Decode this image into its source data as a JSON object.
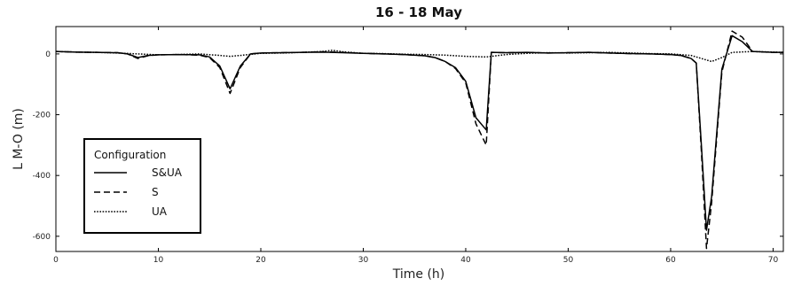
{
  "chart_data": {
    "type": "line",
    "title": "16 - 18 May",
    "xlabel": "Time (h)",
    "ylabel": "L M-O (m)",
    "xlim": [
      0,
      71
    ],
    "ylim": [
      -650,
      90
    ],
    "xticks": [
      0,
      10,
      20,
      30,
      40,
      50,
      60,
      70
    ],
    "yticks": [
      0,
      -200,
      -400,
      -600
    ],
    "grid": false,
    "legend": {
      "title": "Configuration",
      "placement": "lower-left",
      "entries": [
        "S&UA",
        "S",
        "UA"
      ]
    },
    "series": [
      {
        "name": "S&UA",
        "style": "solid",
        "x": [
          0,
          2,
          4,
          6,
          7,
          8,
          9,
          10,
          12,
          14,
          15,
          16,
          17,
          18,
          19,
          20,
          22,
          24,
          26,
          28,
          30,
          32,
          34,
          36,
          37,
          38,
          39,
          40,
          41,
          42,
          42.5,
          44,
          46,
          48,
          50,
          52,
          54,
          56,
          58,
          60,
          61,
          62,
          62.5,
          63,
          63.5,
          64,
          65,
          66,
          67,
          68,
          70,
          71
        ],
        "y": [
          8,
          6,
          5,
          4,
          0,
          -12,
          -5,
          -3,
          -2,
          -3,
          -10,
          -40,
          -115,
          -40,
          0,
          3,
          4,
          5,
          6,
          4,
          2,
          0,
          -2,
          -6,
          -12,
          -25,
          -45,
          -90,
          -210,
          -250,
          5,
          4,
          5,
          3,
          4,
          5,
          3,
          1,
          0,
          -2,
          -5,
          -15,
          -30,
          -300,
          -580,
          -470,
          -50,
          60,
          40,
          8,
          5,
          5
        ]
      },
      {
        "name": "S",
        "style": "dashed",
        "x": [
          0,
          2,
          4,
          6,
          7,
          8,
          9,
          10,
          12,
          14,
          15,
          16,
          17,
          18,
          19,
          20,
          22,
          24,
          26,
          28,
          30,
          32,
          34,
          36,
          37,
          38,
          39,
          40,
          41,
          42,
          42.5,
          44,
          46,
          48,
          50,
          52,
          54,
          56,
          58,
          60,
          61,
          62,
          62.5,
          63,
          63.5,
          64,
          65,
          66,
          67,
          68,
          70,
          71
        ],
        "y": [
          8,
          6,
          5,
          4,
          0,
          -15,
          -6,
          -3,
          -2,
          -4,
          -12,
          -45,
          -130,
          -45,
          0,
          3,
          4,
          5,
          7,
          5,
          2,
          0,
          -2,
          -6,
          -12,
          -25,
          -48,
          -95,
          -230,
          -300,
          5,
          4,
          5,
          3,
          4,
          5,
          3,
          1,
          0,
          -2,
          -5,
          -15,
          -30,
          -320,
          -640,
          -490,
          -60,
          75,
          55,
          8,
          5,
          5
        ]
      },
      {
        "name": "UA",
        "style": "dotted",
        "x": [
          0,
          2,
          4,
          6,
          8,
          10,
          12,
          14,
          16,
          17,
          18,
          20,
          22,
          24,
          26,
          27,
          28,
          30,
          32,
          34,
          36,
          38,
          40,
          42,
          44,
          46,
          48,
          50,
          52,
          54,
          56,
          58,
          60,
          62,
          63,
          64,
          65,
          66,
          68,
          70,
          71
        ],
        "y": [
          8,
          6,
          5,
          3,
          0,
          -3,
          -2,
          0,
          -5,
          -8,
          -5,
          2,
          3,
          5,
          8,
          12,
          7,
          2,
          1,
          -1,
          -2,
          -4,
          -8,
          -10,
          -2,
          2,
          4,
          3,
          4,
          5,
          3,
          1,
          0,
          -5,
          -15,
          -25,
          -12,
          5,
          8,
          6,
          5
        ]
      }
    ]
  }
}
